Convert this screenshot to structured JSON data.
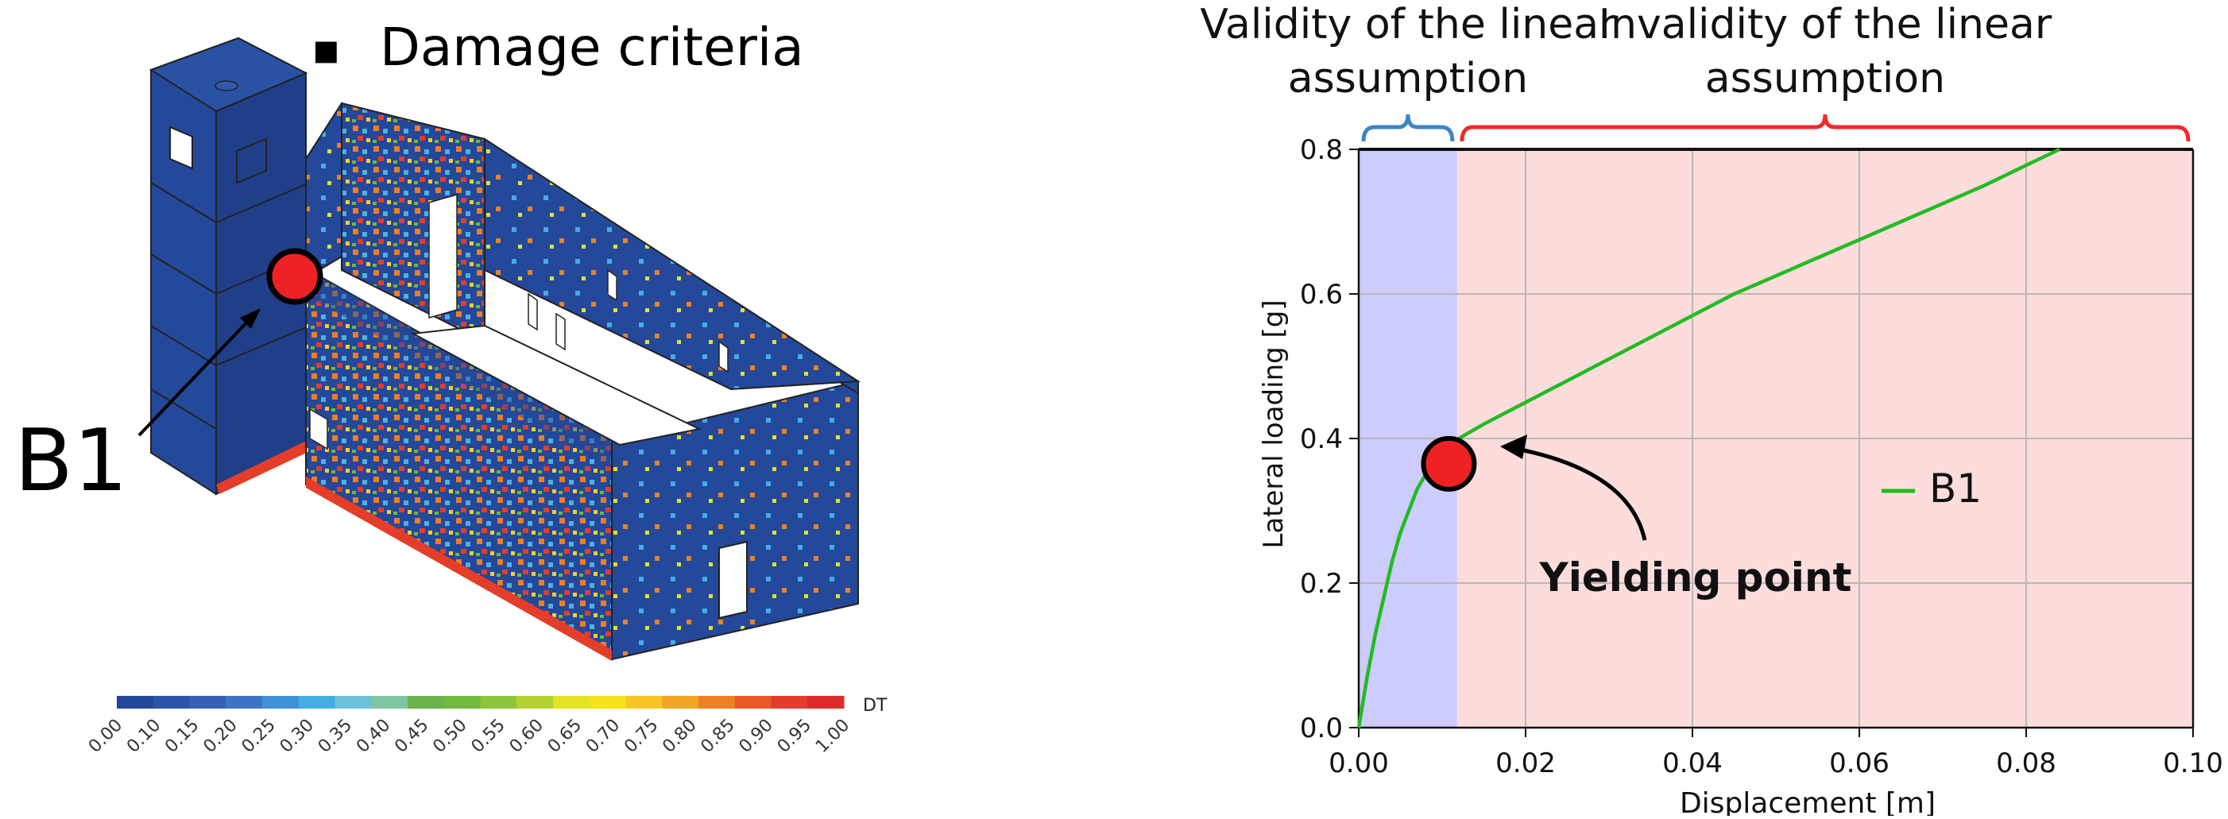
{
  "left_panel": {
    "bullet": "▪",
    "heading": "Damage criteria",
    "building_label": "B1",
    "colorbar": {
      "unit": "DT",
      "ticks": [
        "0.00",
        "0.10",
        "0.15",
        "0.20",
        "0.25",
        "0.30",
        "0.35",
        "0.40",
        "0.45",
        "0.50",
        "0.55",
        "0.60",
        "0.65",
        "0.70",
        "0.75",
        "0.80",
        "0.85",
        "0.90",
        "0.95",
        "1.00"
      ],
      "colors": [
        "#23479a",
        "#2b55a8",
        "#3560b4",
        "#3d74c8",
        "#3f93d8",
        "#43aee1",
        "#69c2d9",
        "#80c6a2",
        "#6cb34a",
        "#71b93f",
        "#8fc53a",
        "#b5d230",
        "#e4e325",
        "#f5e11c",
        "#f8c427",
        "#f4a525",
        "#ef8024",
        "#ea5927",
        "#e43d2a",
        "#df2a2a"
      ]
    },
    "colors": {
      "wall": "#24489a",
      "wall_side": "#1f3f88",
      "marker": "#ed2227"
    }
  },
  "chart_data": {
    "type": "line",
    "xlabel": "Displacement [m]",
    "ylabel": "Lateral loading [g]",
    "xlim": [
      0.0,
      0.1
    ],
    "ylim": [
      0.0,
      0.8
    ],
    "xticks": [
      "0.00",
      "0.02",
      "0.04",
      "0.06",
      "0.08",
      "0.10"
    ],
    "yticks": [
      "0.0",
      "0.2",
      "0.4",
      "0.6",
      "0.8"
    ],
    "grid": true,
    "legend_position": "center-right",
    "series": [
      {
        "name": "B1",
        "color": "#22bb22",
        "x": [
          0.0,
          0.001,
          0.002,
          0.003,
          0.004,
          0.005,
          0.006,
          0.007,
          0.008,
          0.009,
          0.01,
          0.011,
          0.012,
          0.015,
          0.02,
          0.025,
          0.03,
          0.035,
          0.04,
          0.045,
          0.05,
          0.055,
          0.06,
          0.065,
          0.07,
          0.075,
          0.08,
          0.084
        ],
        "y": [
          0.0,
          0.07,
          0.13,
          0.18,
          0.23,
          0.27,
          0.3,
          0.33,
          0.35,
          0.365,
          0.378,
          0.39,
          0.4,
          0.42,
          0.45,
          0.48,
          0.51,
          0.54,
          0.57,
          0.6,
          0.625,
          0.65,
          0.675,
          0.7,
          0.725,
          0.75,
          0.778,
          0.8
        ]
      }
    ],
    "regions": [
      {
        "from": 0.0,
        "to": 0.0118,
        "color": "#ccccff",
        "bracket_color": "#3a85c8",
        "label_lines": [
          "Validity of the linear",
          "assumption"
        ]
      },
      {
        "from": 0.0118,
        "to": 0.1,
        "color": "#fddcdc",
        "bracket_color": "#ee2b2b",
        "label_lines": [
          "Invalidity of the linear",
          "assumption"
        ]
      }
    ],
    "marker": {
      "x": 0.0108,
      "y": 0.365,
      "color": "#ee2222"
    },
    "annotation": {
      "text": "Yielding point"
    }
  }
}
